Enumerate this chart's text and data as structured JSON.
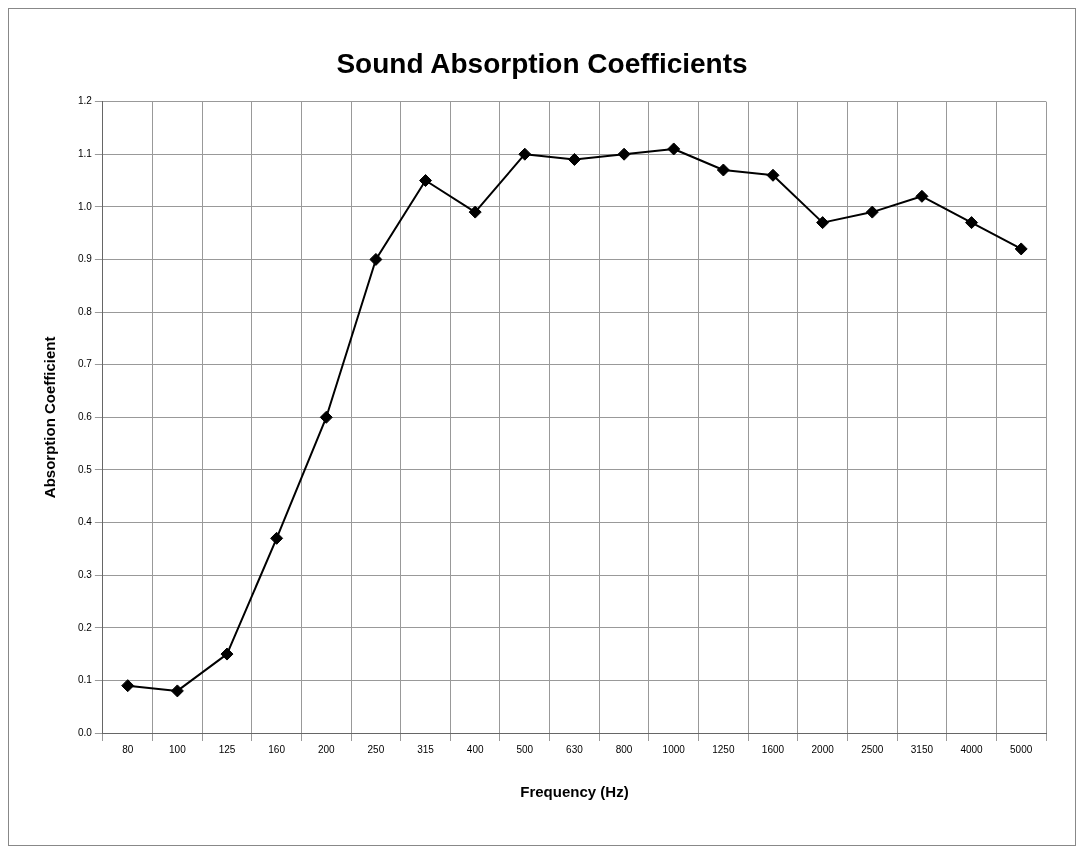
{
  "chart_data": {
    "type": "line",
    "title": "Sound Absorption Coefficients",
    "xlabel": "Frequency (Hz)",
    "ylabel": "Absorption Coefficient",
    "categories": [
      "80",
      "100",
      "125",
      "160",
      "200",
      "250",
      "315",
      "400",
      "500",
      "630",
      "800",
      "1000",
      "1250",
      "1600",
      "2000",
      "2500",
      "3150",
      "4000",
      "5000"
    ],
    "series": [
      {
        "color": "#000000",
        "values": [
          0.09,
          0.08,
          0.15,
          0.37,
          0.6,
          0.9,
          1.05,
          0.99,
          1.1,
          1.09,
          1.1,
          1.11,
          1.07,
          1.06,
          0.97,
          0.99,
          1.02,
          0.97,
          0.92
        ]
      }
    ],
    "ylim": [
      0,
      1.2
    ],
    "yticks": [
      {
        "value": 0,
        "label": "0.0"
      },
      {
        "value": 0.1,
        "label": "0.1"
      },
      {
        "value": 0.2,
        "label": "0.2"
      },
      {
        "value": 0.3,
        "label": "0.3"
      },
      {
        "value": 0.4,
        "label": "0.4"
      },
      {
        "value": 0.5,
        "label": "0.5"
      },
      {
        "value": 0.6,
        "label": "0.6"
      },
      {
        "value": 0.7,
        "label": "0.7"
      },
      {
        "value": 0.8,
        "label": "0.8"
      },
      {
        "value": 0.9,
        "label": "0.9"
      },
      {
        "value": 1,
        "label": "1.0"
      },
      {
        "value": 1.1,
        "label": "1.1"
      },
      {
        "value": 1.2,
        "label": "1.2"
      }
    ],
    "grid": true,
    "legend": false,
    "marker": "diamond",
    "line_style": "solid"
  }
}
